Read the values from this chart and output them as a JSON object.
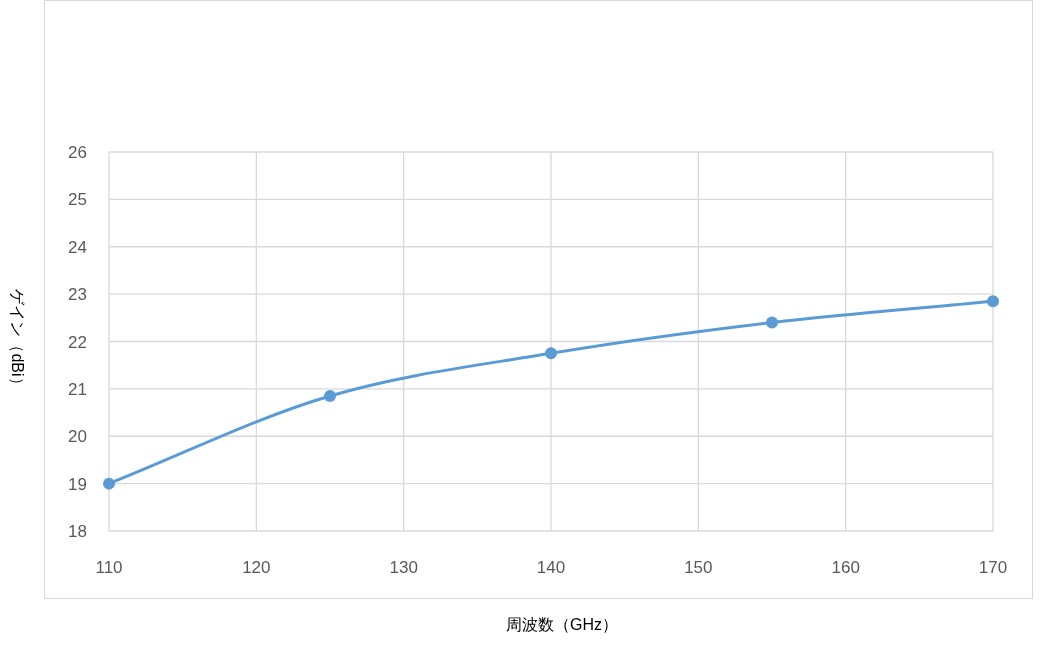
{
  "chart_data": {
    "type": "line",
    "xlabel": "周波数（GHz）",
    "ylabel": "ゲイン（dBi）",
    "x": [
      110,
      125,
      140,
      155,
      170
    ],
    "series": [
      {
        "color": "#5b9bd5",
        "values": [
          19.0,
          20.85,
          21.75,
          22.4,
          22.85
        ]
      }
    ],
    "xlim": [
      110,
      170
    ],
    "xticks": [
      110,
      120,
      130,
      140,
      150,
      160,
      170
    ],
    "ylim": [
      18,
      26
    ],
    "yticks": [
      18,
      19,
      20,
      21,
      22,
      23,
      24,
      25,
      26
    ],
    "grid": true,
    "marker": "circle"
  }
}
